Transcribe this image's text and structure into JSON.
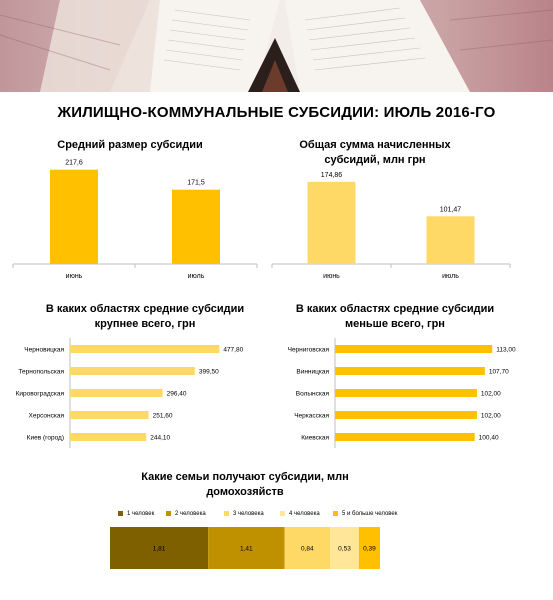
{
  "header": {
    "title": "ЖИЛИЩНО-КОММУНАЛЬНЫЕ СУБСИДИИ: ИЮЛЬ 2016-ГО"
  },
  "chart_data": [
    {
      "type": "bar",
      "title": "Средний размер субсидии",
      "categories": [
        "июнь",
        "июль"
      ],
      "values": [
        217.6,
        171.5
      ],
      "value_labels": [
        "217,6",
        "171,5"
      ],
      "ylim": [
        0,
        240
      ],
      "color": "#ffc000"
    },
    {
      "type": "bar",
      "title": "Общая сумма начисленных субсидий, млн грн",
      "categories": [
        "июнь",
        "июль"
      ],
      "values": [
        174.86,
        101.47
      ],
      "value_labels": [
        "174,86",
        "101,47"
      ],
      "ylim": [
        0,
        200
      ],
      "color": "#ffd966"
    },
    {
      "type": "bar",
      "orientation": "horizontal",
      "title": "В каких областях средние субсидии крупнее всего, грн",
      "categories": [
        "Черновицкая",
        "Тернопольская",
        "Кировоградская",
        "Херсонская",
        "Киев (город)"
      ],
      "values": [
        477.8,
        399.5,
        296.4,
        251.6,
        244.1
      ],
      "value_labels": [
        "477,80",
        "399,50",
        "296,40",
        "251,60",
        "244,10"
      ],
      "xlim": [
        0,
        480
      ],
      "color": "#ffd966"
    },
    {
      "type": "bar",
      "orientation": "horizontal",
      "title": "В каких областях средние субсидии меньше всего, грн",
      "categories": [
        "Черниговская",
        "Винницкая",
        "Волынская",
        "Черкасская",
        "Киевская"
      ],
      "values": [
        113.0,
        107.7,
        102.0,
        102.0,
        100.4
      ],
      "value_labels": [
        "113,00",
        "107,70",
        "102,00",
        "102,00",
        "100,40"
      ],
      "xlim": [
        0,
        115
      ],
      "color": "#ffc000"
    },
    {
      "type": "bar",
      "orientation": "stacked-horizontal",
      "title": "Какие семьи получают субсидии, млн домохозяйств",
      "legend_position": "top",
      "series": [
        {
          "name": "1 человек",
          "values": [
            1.81
          ],
          "value_label": "1,81",
          "color": "#7f6000"
        },
        {
          "name": "2 человека",
          "values": [
            1.41
          ],
          "value_label": "1,41",
          "color": "#bf9000"
        },
        {
          "name": "3 человека",
          "values": [
            0.84
          ],
          "value_label": "0,84",
          "color": "#ffd966"
        },
        {
          "name": "4 человека",
          "values": [
            0.53
          ],
          "value_label": "0,53",
          "color": "#ffe699"
        },
        {
          "name": "5 и больше человек",
          "values": [
            0.39
          ],
          "value_label": "0,39",
          "color": "#ffc000"
        }
      ]
    }
  ]
}
